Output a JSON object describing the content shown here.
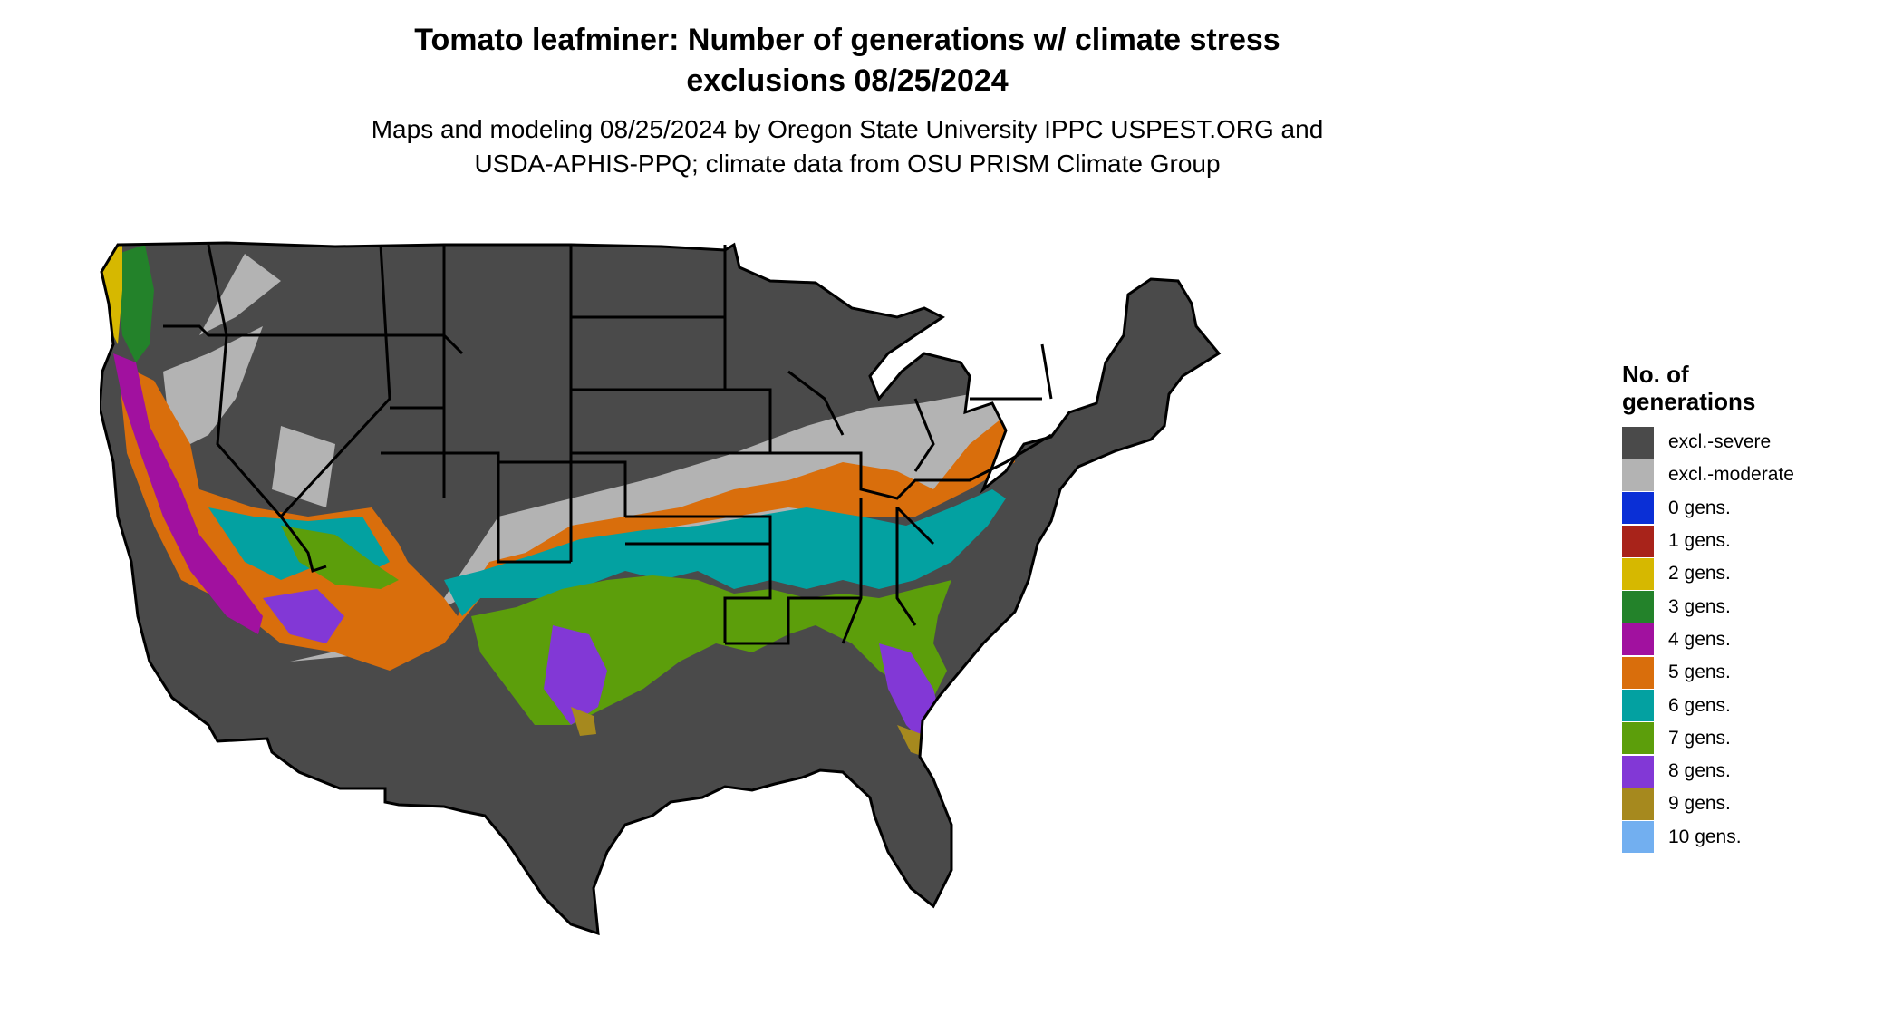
{
  "title": {
    "line1": "Tomato leafminer: Number of generations w/ climate stress",
    "line2": "exclusions 08/25/2024"
  },
  "subtitle": {
    "line1": "Maps and modeling 08/25/2024 by Oregon State University IPPC USPEST.ORG and",
    "line2": "USDA-APHIS-PPQ; climate data from OSU PRISM Climate Group"
  },
  "legend": {
    "title_line1": "No. of",
    "title_line2": "generations",
    "items": [
      {
        "label": "excl.-severe",
        "color": "#4a4a4a"
      },
      {
        "label": "excl.-moderate",
        "color": "#b3b3b3"
      },
      {
        "label": "0 gens.",
        "color": "#0a2fd6"
      },
      {
        "label": "1 gens.",
        "color": "#a8231a"
      },
      {
        "label": "2 gens.",
        "color": "#d6b800"
      },
      {
        "label": "3 gens.",
        "color": "#23822a"
      },
      {
        "label": "4 gens.",
        "color": "#a1119f"
      },
      {
        "label": "5 gens.",
        "color": "#d96e0c"
      },
      {
        "label": "6 gens.",
        "color": "#03a1a1"
      },
      {
        "label": "7 gens.",
        "color": "#5c9e0b"
      },
      {
        "label": "8 gens.",
        "color": "#8238d6"
      },
      {
        "label": "9 gens.",
        "color": "#a6891e"
      },
      {
        "label": "10 gens.",
        "color": "#72aff0"
      }
    ]
  }
}
